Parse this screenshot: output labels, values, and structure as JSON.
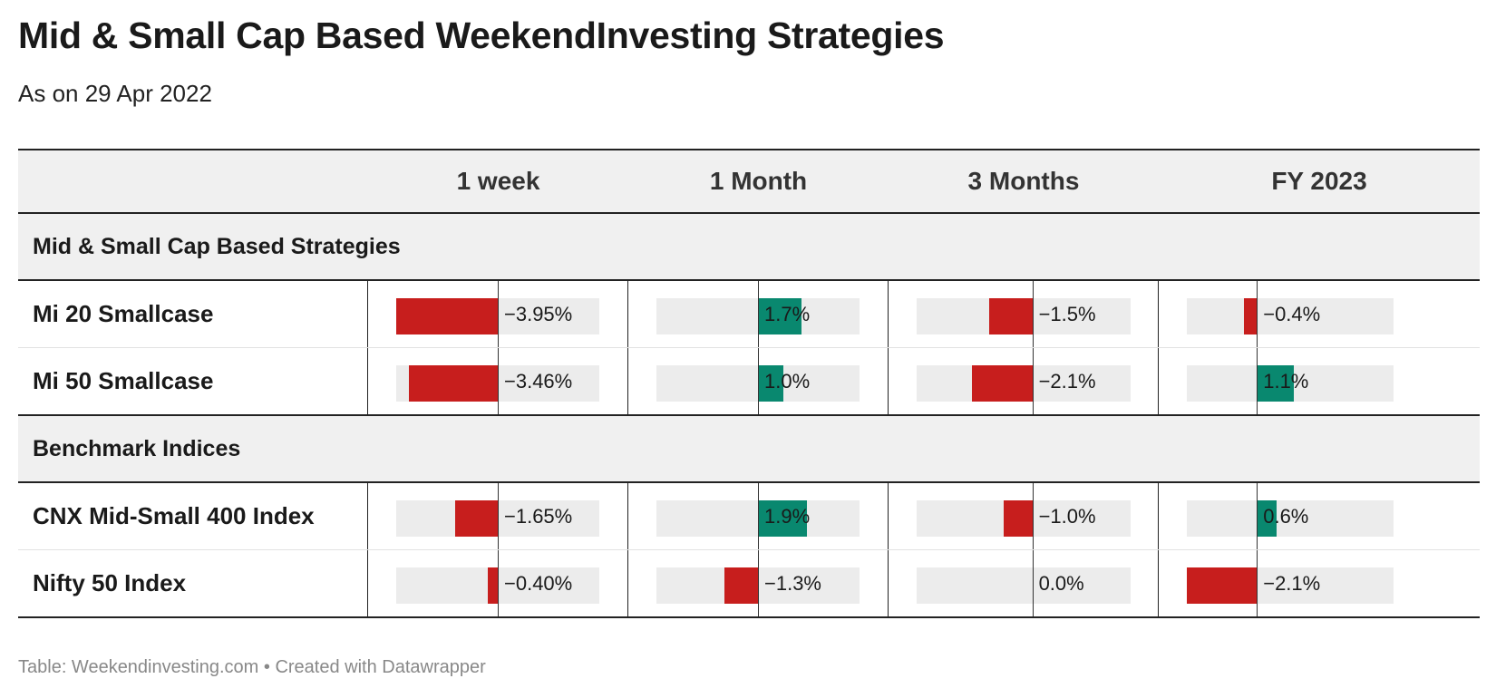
{
  "title": "Mid & Small Cap Based WeekendInvesting Strategies",
  "subtitle": "As on 29 Apr 2022",
  "footer": "Table: Weekendinvesting.com • Created with Datawrapper",
  "colors": {
    "negative": "#c71e1d",
    "positive": "#09886f",
    "track": "#ececec",
    "header_bg": "#f0f0f0"
  },
  "chart_data": {
    "type": "table",
    "columns": [
      "",
      "1 week",
      "1 Month",
      "3 Months",
      "FY 2023"
    ],
    "groups": [
      {
        "label": "Mid & Small Cap Based Strategies",
        "rows": [
          {
            "name": "Mi 20 Smallcase",
            "values": [
              -3.95,
              1.7,
              -1.5,
              -0.4
            ],
            "labels": [
              "−3.95%",
              "1.7%",
              "−1.5%",
              "−0.4%"
            ]
          },
          {
            "name": "Mi 50 Smallcase",
            "values": [
              -3.46,
              1.0,
              -2.1,
              1.1
            ],
            "labels": [
              "−3.46%",
              "1.0%",
              "−2.1%",
              "1.1%"
            ]
          }
        ]
      },
      {
        "label": "Benchmark Indices",
        "rows": [
          {
            "name": "CNX Mid-Small 400 Index",
            "values": [
              -1.65,
              1.9,
              -1.0,
              0.6
            ],
            "labels": [
              "−1.65%",
              "1.9%",
              "−1.0%",
              "0.6%"
            ]
          },
          {
            "name": "Nifty 50 Index",
            "values": [
              -0.4,
              -1.3,
              0.0,
              -2.1
            ],
            "labels": [
              "−0.40%",
              "−1.3%",
              "0.0%",
              "−2.1%"
            ]
          }
        ]
      }
    ],
    "column_ranges": [
      [
        -3.95,
        3.95
      ],
      [
        -3.95,
        3.95
      ],
      [
        -4.0,
        3.4
      ],
      [
        -2.1,
        4.1
      ]
    ]
  }
}
